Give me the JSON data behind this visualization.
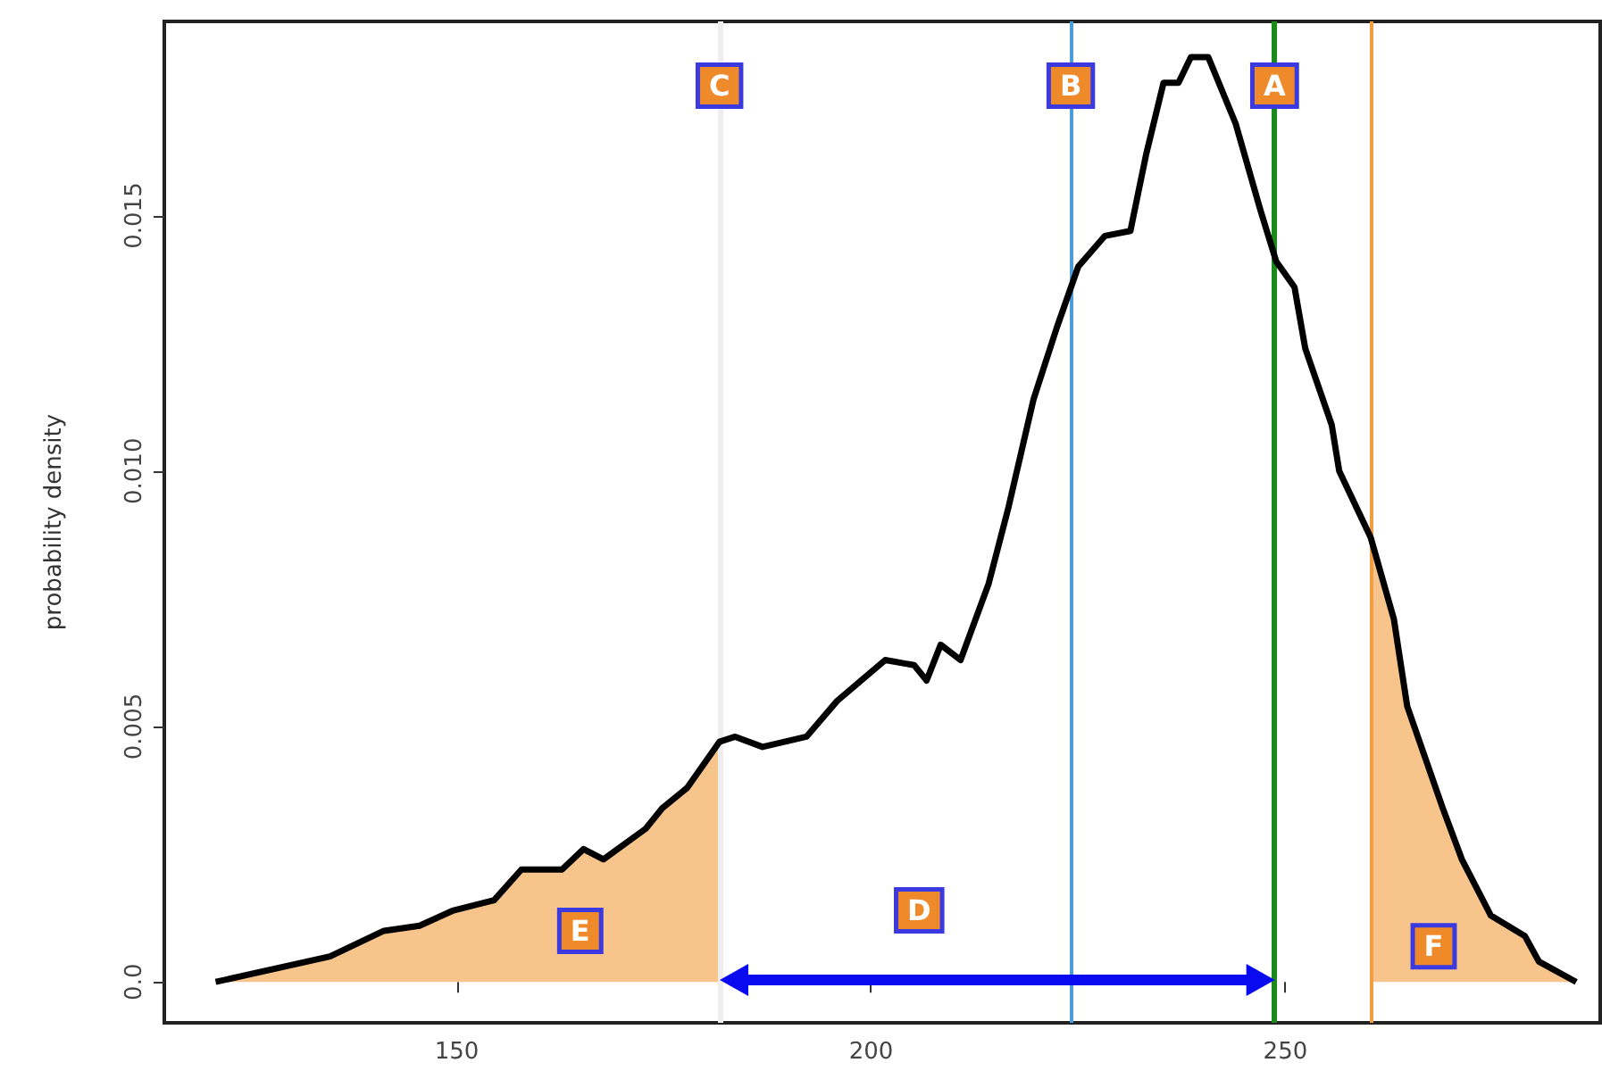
{
  "chart_data": {
    "type": "line",
    "ylabel": "probability density",
    "x": [
      120.9,
      134.7,
      141.2,
      145.5,
      149.6,
      154.5,
      157.8,
      162.7,
      165.3,
      167.7,
      172.8,
      174.8,
      177.8,
      181.7,
      183.6,
      186.9,
      192.2,
      195.9,
      201.7,
      205.2,
      206.7,
      208.4,
      210.8,
      214.2,
      216.6,
      219.6,
      222.4,
      225.0,
      228.2,
      231.3,
      233.2,
      235.3,
      237.1,
      238.6,
      240.7,
      244.0,
      247.0,
      248.9,
      251.1,
      252.4,
      255.6,
      256.5,
      260.3,
      263.1,
      264.7,
      269.0,
      271.3,
      274.8,
      278.9,
      280.6,
      285.1
    ],
    "series": [
      {
        "type": "area",
        "color": "#f7c48c",
        "x": [
          120.9,
          134.7,
          141.2,
          145.5,
          149.6,
          154.5,
          157.8,
          162.7,
          165.3,
          167.7,
          172.8,
          174.8,
          177.8,
          181.7
        ],
        "values": [
          0,
          0.0005,
          0.001,
          0.0011,
          0.0014,
          0.0016,
          0.0022,
          0.0022,
          0.0026,
          0.0024,
          0.003,
          0.0034,
          0.0038,
          0.0047
        ]
      },
      {
        "type": "area",
        "color": "#f7c48c",
        "x": [
          260.3,
          263.1,
          264.7,
          269.0,
          271.3,
          274.8,
          278.9,
          280.6,
          285.1
        ],
        "values": [
          0.0087,
          0.0071,
          0.0054,
          0.0034,
          0.0024,
          0.0013,
          0.0009,
          0.0004,
          0
        ]
      },
      {
        "color": "#000000",
        "values": [
          0,
          0.0005,
          0.001,
          0.0011,
          0.0014,
          0.0016,
          0.0022,
          0.0022,
          0.0026,
          0.0024,
          0.003,
          0.0034,
          0.0038,
          0.0047,
          0.0048,
          0.0046,
          0.0048,
          0.0055,
          0.0063,
          0.0062,
          0.0059,
          0.0066,
          0.0063,
          0.0078,
          0.0093,
          0.0114,
          0.0128,
          0.014,
          0.0146,
          0.0147,
          0.0162,
          0.0176,
          0.0176,
          0.0181,
          0.0181,
          0.0168,
          0.0151,
          0.0141,
          0.0136,
          0.0124,
          0.0109,
          0.01,
          0.0087,
          0.0071,
          0.0054,
          0.0034,
          0.0024,
          0.0013,
          0.0009,
          0.0004,
          0
        ]
      }
    ],
    "xlim": [
      114.7,
      288
    ],
    "xticks": [
      150,
      200,
      250
    ],
    "ylim": [
      -0.0008,
      0.0188
    ],
    "yticks": [
      {
        "value": 0,
        "label": "0.0"
      },
      0.005,
      {
        "value": 0.01,
        "label": "0.010"
      },
      0.015
    ],
    "ref_lines": [
      {
        "axis": "x",
        "value": 181.7,
        "label": "C",
        "color": "#eeeeee"
      },
      {
        "axis": "x",
        "value": 224.1,
        "label": "B",
        "color": "#4a9fd8"
      },
      {
        "axis": "x",
        "value": 248.7,
        "label": "A",
        "color": "#1a8a1a"
      },
      {
        "axis": "x",
        "value": 260.3,
        "color": "#f39c40"
      }
    ],
    "annotations": [
      {
        "text": "D",
        "x": 205.8,
        "y": 0.0014
      },
      {
        "text": "E",
        "x": 164.9,
        "y": 0.001
      },
      {
        "text": "F",
        "x": 267.9,
        "y": 0.0007
      }
    ],
    "grid": false
  }
}
